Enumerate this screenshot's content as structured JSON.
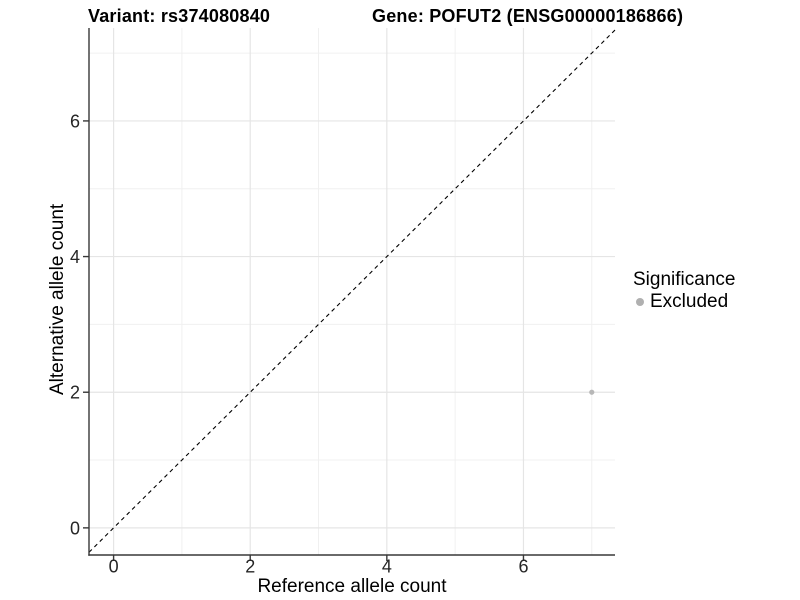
{
  "figure": {
    "titles": {
      "variant": "Variant: rs374080840",
      "gene": "Gene: POFUT2 (ENSG00000186866)"
    }
  },
  "chart_data": {
    "type": "scatter",
    "title": "Variant: rs374080840   Gene: POFUT2 (ENSG00000186866)",
    "xlabel": "Reference allele count",
    "ylabel": "Alternative allele count",
    "xlim": [
      -0.36,
      7.34
    ],
    "ylim": [
      -0.4,
      7.37
    ],
    "xticks": {
      "major": [
        0,
        2,
        4,
        6
      ],
      "minor": [
        1,
        3,
        5,
        7
      ]
    },
    "yticks": {
      "major": [
        0,
        2,
        4,
        6
      ],
      "minor": [
        1,
        3,
        5,
        7
      ]
    },
    "grid": {
      "major": true,
      "minor": true
    },
    "reference_line": {
      "type": "identity",
      "slope": 1,
      "intercept": 0,
      "style": "dashed"
    },
    "series": [
      {
        "name": "Excluded",
        "color": "#b7b7b7",
        "points": [
          {
            "x": 7,
            "y": 2
          }
        ]
      }
    ],
    "legend": {
      "title": "Significance",
      "position": "right",
      "items": [
        {
          "label": "Excluded",
          "color": "#b0b0b0",
          "marker": "circle"
        }
      ]
    }
  },
  "colors": {
    "background": "#ffffff",
    "axis": "#383838",
    "tick_label": "#262626",
    "grid_major": "#e5e5e5",
    "grid_minor": "#f0f0f0",
    "reference_line": "#000000",
    "point": "#b7b7b7"
  }
}
